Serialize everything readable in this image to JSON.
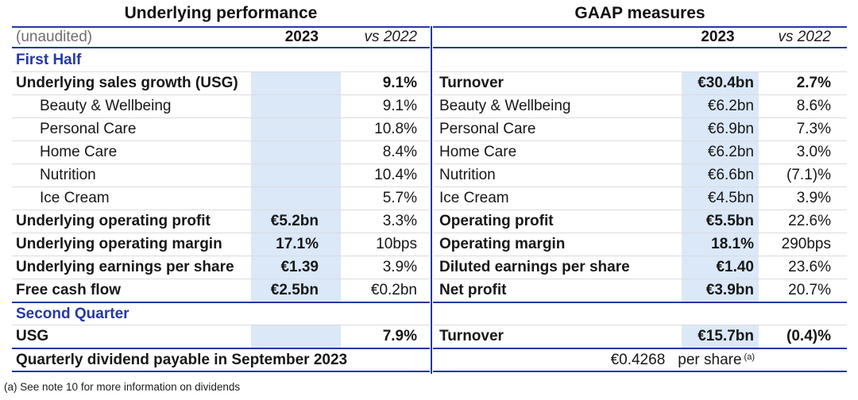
{
  "colors": {
    "accent_blue": "#2538a6",
    "highlight_blue": "#dbe8f8",
    "rule_gray": "#dcdcdc",
    "muted_gray": "#6e6e6e",
    "ink": "#171717"
  },
  "footnote": "(a) See note 10 for more information on dividends",
  "left_table": {
    "title": "Underlying performance",
    "header": {
      "label": "(unaudited)",
      "col_2023": "2023",
      "col_vs_2022": "vs 2022"
    },
    "rows": [
      {
        "type": "section",
        "label": "First Half"
      },
      {
        "type": "data",
        "label": "Underlying sales growth (USG)",
        "label_bold": true,
        "value_2023": "",
        "vs_2022": "9.1%",
        "vs_bold": true
      },
      {
        "type": "data",
        "label": "Beauty & Wellbeing",
        "indent": true,
        "value_2023": "",
        "vs_2022": "9.1%"
      },
      {
        "type": "data",
        "label": "Personal Care",
        "indent": true,
        "value_2023": "",
        "vs_2022": "10.8%"
      },
      {
        "type": "data",
        "label": "Home Care",
        "indent": true,
        "value_2023": "",
        "vs_2022": "8.4%"
      },
      {
        "type": "data",
        "label": "Nutrition",
        "indent": true,
        "value_2023": "",
        "vs_2022": "10.4%"
      },
      {
        "type": "data",
        "label": "Ice Cream",
        "indent": true,
        "value_2023": "",
        "vs_2022": "5.7%"
      },
      {
        "type": "data",
        "label": "Underlying operating profit",
        "label_bold": true,
        "value_2023": "€5.2bn",
        "value_bold": true,
        "vs_2022": "3.3%"
      },
      {
        "type": "data",
        "label": "Underlying operating margin",
        "label_bold": true,
        "value_2023": "17.1%",
        "value_bold": true,
        "vs_2022": "10bps"
      },
      {
        "type": "data",
        "label": "Underlying earnings per share",
        "label_bold": true,
        "value_2023": "€1.39",
        "value_bold": true,
        "vs_2022": "3.9%"
      },
      {
        "type": "data",
        "label": "Free cash flow",
        "label_bold": true,
        "value_2023": "€2.5bn",
        "value_bold": true,
        "vs_2022": "€0.2bn"
      },
      {
        "type": "section",
        "label": "Second Quarter"
      },
      {
        "type": "data",
        "label": "USG",
        "label_bold": true,
        "value_2023": "",
        "vs_2022": "7.9%",
        "vs_bold": true
      },
      {
        "type": "dividend_label",
        "label": "Quarterly dividend payable in September 2023"
      }
    ]
  },
  "right_table": {
    "title": "GAAP measures",
    "header": {
      "label": "",
      "col_2023": "2023",
      "col_vs_2022": "vs 2022"
    },
    "rows": [
      {
        "type": "spacer"
      },
      {
        "type": "data",
        "label": "Turnover",
        "label_bold": true,
        "value_2023": "€30.4bn",
        "value_bold": true,
        "vs_2022": "2.7%",
        "vs_bold": true
      },
      {
        "type": "data",
        "label": "Beauty & Wellbeing",
        "indent": true,
        "value_2023": "€6.2bn",
        "vs_2022": "8.6%"
      },
      {
        "type": "data",
        "label": "Personal Care",
        "indent": true,
        "value_2023": "€6.9bn",
        "vs_2022": "7.3%"
      },
      {
        "type": "data",
        "label": "Home Care",
        "indent": true,
        "value_2023": "€6.2bn",
        "vs_2022": "3.0%"
      },
      {
        "type": "data",
        "label": "Nutrition",
        "indent": true,
        "value_2023": "€6.6bn",
        "vs_2022": "(7.1)%"
      },
      {
        "type": "data",
        "label": "Ice Cream",
        "indent": true,
        "value_2023": "€4.5bn",
        "vs_2022": "3.9%"
      },
      {
        "type": "data",
        "label": "Operating profit",
        "label_bold": true,
        "value_2023": "€5.5bn",
        "value_bold": true,
        "vs_2022": "22.6%"
      },
      {
        "type": "data",
        "label": "Operating margin",
        "label_bold": true,
        "value_2023": "18.1%",
        "value_bold": true,
        "vs_2022": "290bps"
      },
      {
        "type": "data",
        "label": "Diluted earnings per share",
        "label_bold": true,
        "value_2023": "€1.40",
        "value_bold": true,
        "vs_2022": "23.6%"
      },
      {
        "type": "data",
        "label": "Net profit",
        "label_bold": true,
        "value_2023": "€3.9bn",
        "value_bold": true,
        "vs_2022": "20.7%"
      },
      {
        "type": "spacer"
      },
      {
        "type": "data",
        "label": "Turnover",
        "label_bold": true,
        "value_2023": "€15.7bn",
        "value_bold": true,
        "vs_2022": "(0.4)%",
        "vs_bold": true
      },
      {
        "type": "dividend",
        "amount": "€0.4268",
        "unit": "per share",
        "footnote_ref": "(a)"
      }
    ]
  }
}
